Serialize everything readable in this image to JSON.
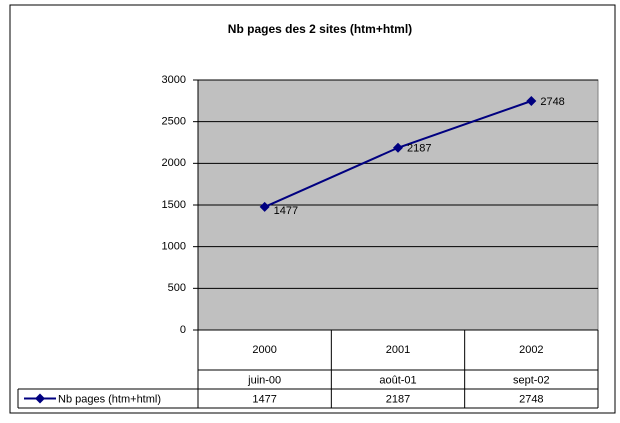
{
  "chart_data": {
    "type": "line",
    "title": "Nb pages des 2 sites (htm+html)",
    "categories": [
      "2000",
      "2001",
      "2002"
    ],
    "table_labels": [
      "juin-00",
      "août-01",
      "sept-02"
    ],
    "series": [
      {
        "name": "Nb pages (htm+html)",
        "color": "#000080",
        "values": [
          1477,
          2187,
          2748
        ]
      }
    ],
    "ylim": [
      0,
      3000
    ],
    "yticks": [
      0,
      500,
      1000,
      1500,
      2000,
      2500,
      3000
    ],
    "grid": true,
    "plot_background": "#c0c0c0",
    "legend": "data-table"
  }
}
